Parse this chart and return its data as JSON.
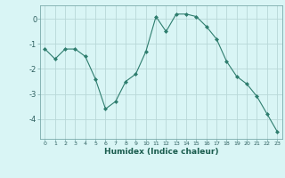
{
  "xlabel": "Humidex (Indice chaleur)",
  "x": [
    0,
    1,
    2,
    3,
    4,
    5,
    6,
    7,
    8,
    9,
    10,
    11,
    12,
    13,
    14,
    15,
    16,
    17,
    18,
    19,
    20,
    21,
    22,
    23
  ],
  "y": [
    -1.2,
    -1.6,
    -1.2,
    -1.2,
    -1.5,
    -2.4,
    -3.6,
    -3.3,
    -2.5,
    -2.2,
    -1.3,
    0.1,
    -0.5,
    0.2,
    0.2,
    0.1,
    -0.3,
    -0.8,
    -1.7,
    -2.3,
    -2.6,
    -3.1,
    -3.8,
    -4.5
  ],
  "line_color": "#2e7d6e",
  "marker": "D",
  "marker_size": 2,
  "bg_color": "#d9f5f5",
  "grid_color": "#b8d8d8",
  "ylim": [
    -4.8,
    0.55
  ],
  "yticks": [
    0,
    -1,
    -2,
    -3,
    -4
  ],
  "xlim": [
    -0.5,
    23.5
  ]
}
